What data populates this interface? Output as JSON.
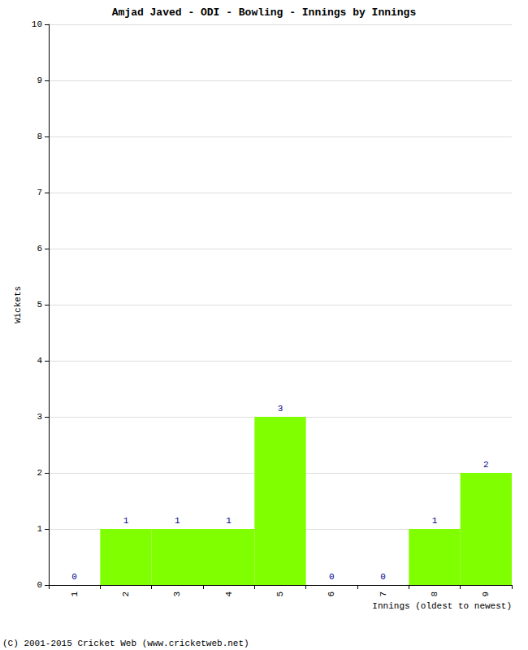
{
  "chart_data": {
    "type": "bar",
    "title": "Amjad Javed - ODI - Bowling - Innings by Innings",
    "x_label": "Innings (oldest to newest)",
    "y_label": "Wickets",
    "categories": [
      "1",
      "2",
      "3",
      "4",
      "5",
      "6",
      "7",
      "8",
      "9"
    ],
    "values": [
      0,
      1,
      1,
      1,
      3,
      0,
      0,
      1,
      2
    ],
    "color": "#7fff00",
    "ylim": [
      0,
      10
    ],
    "yticks": [
      0,
      1,
      2,
      3,
      4,
      5,
      6,
      7,
      8,
      9,
      10
    ],
    "grid": true,
    "data_labels": true,
    "annotations": [
      "(C) 2001-2015 Cricket Web (www.cricketweb.net)"
    ]
  }
}
